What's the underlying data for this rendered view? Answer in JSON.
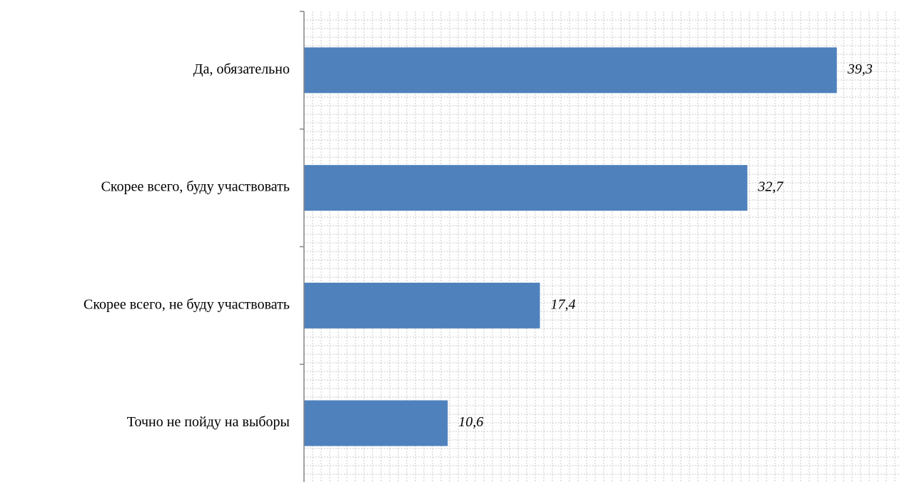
{
  "chart_data": {
    "type": "bar",
    "orientation": "horizontal",
    "categories": [
      "Да, обязательно",
      "Скорее всего, буду участвовать",
      "Скорее всего, не буду участвовать",
      "Точно не пойду на выборы"
    ],
    "values": [
      39.3,
      32.7,
      17.4,
      10.6
    ],
    "value_labels": [
      "39,3",
      "32,7",
      "17,4",
      "10,6"
    ],
    "title": "",
    "xlabel": "",
    "ylabel": "",
    "xlim": [
      0,
      44
    ],
    "grid": true,
    "legend": "none",
    "colors": {
      "bar": "#4F81BD",
      "axis": "#868686",
      "grid": "#C8C8C8"
    }
  }
}
